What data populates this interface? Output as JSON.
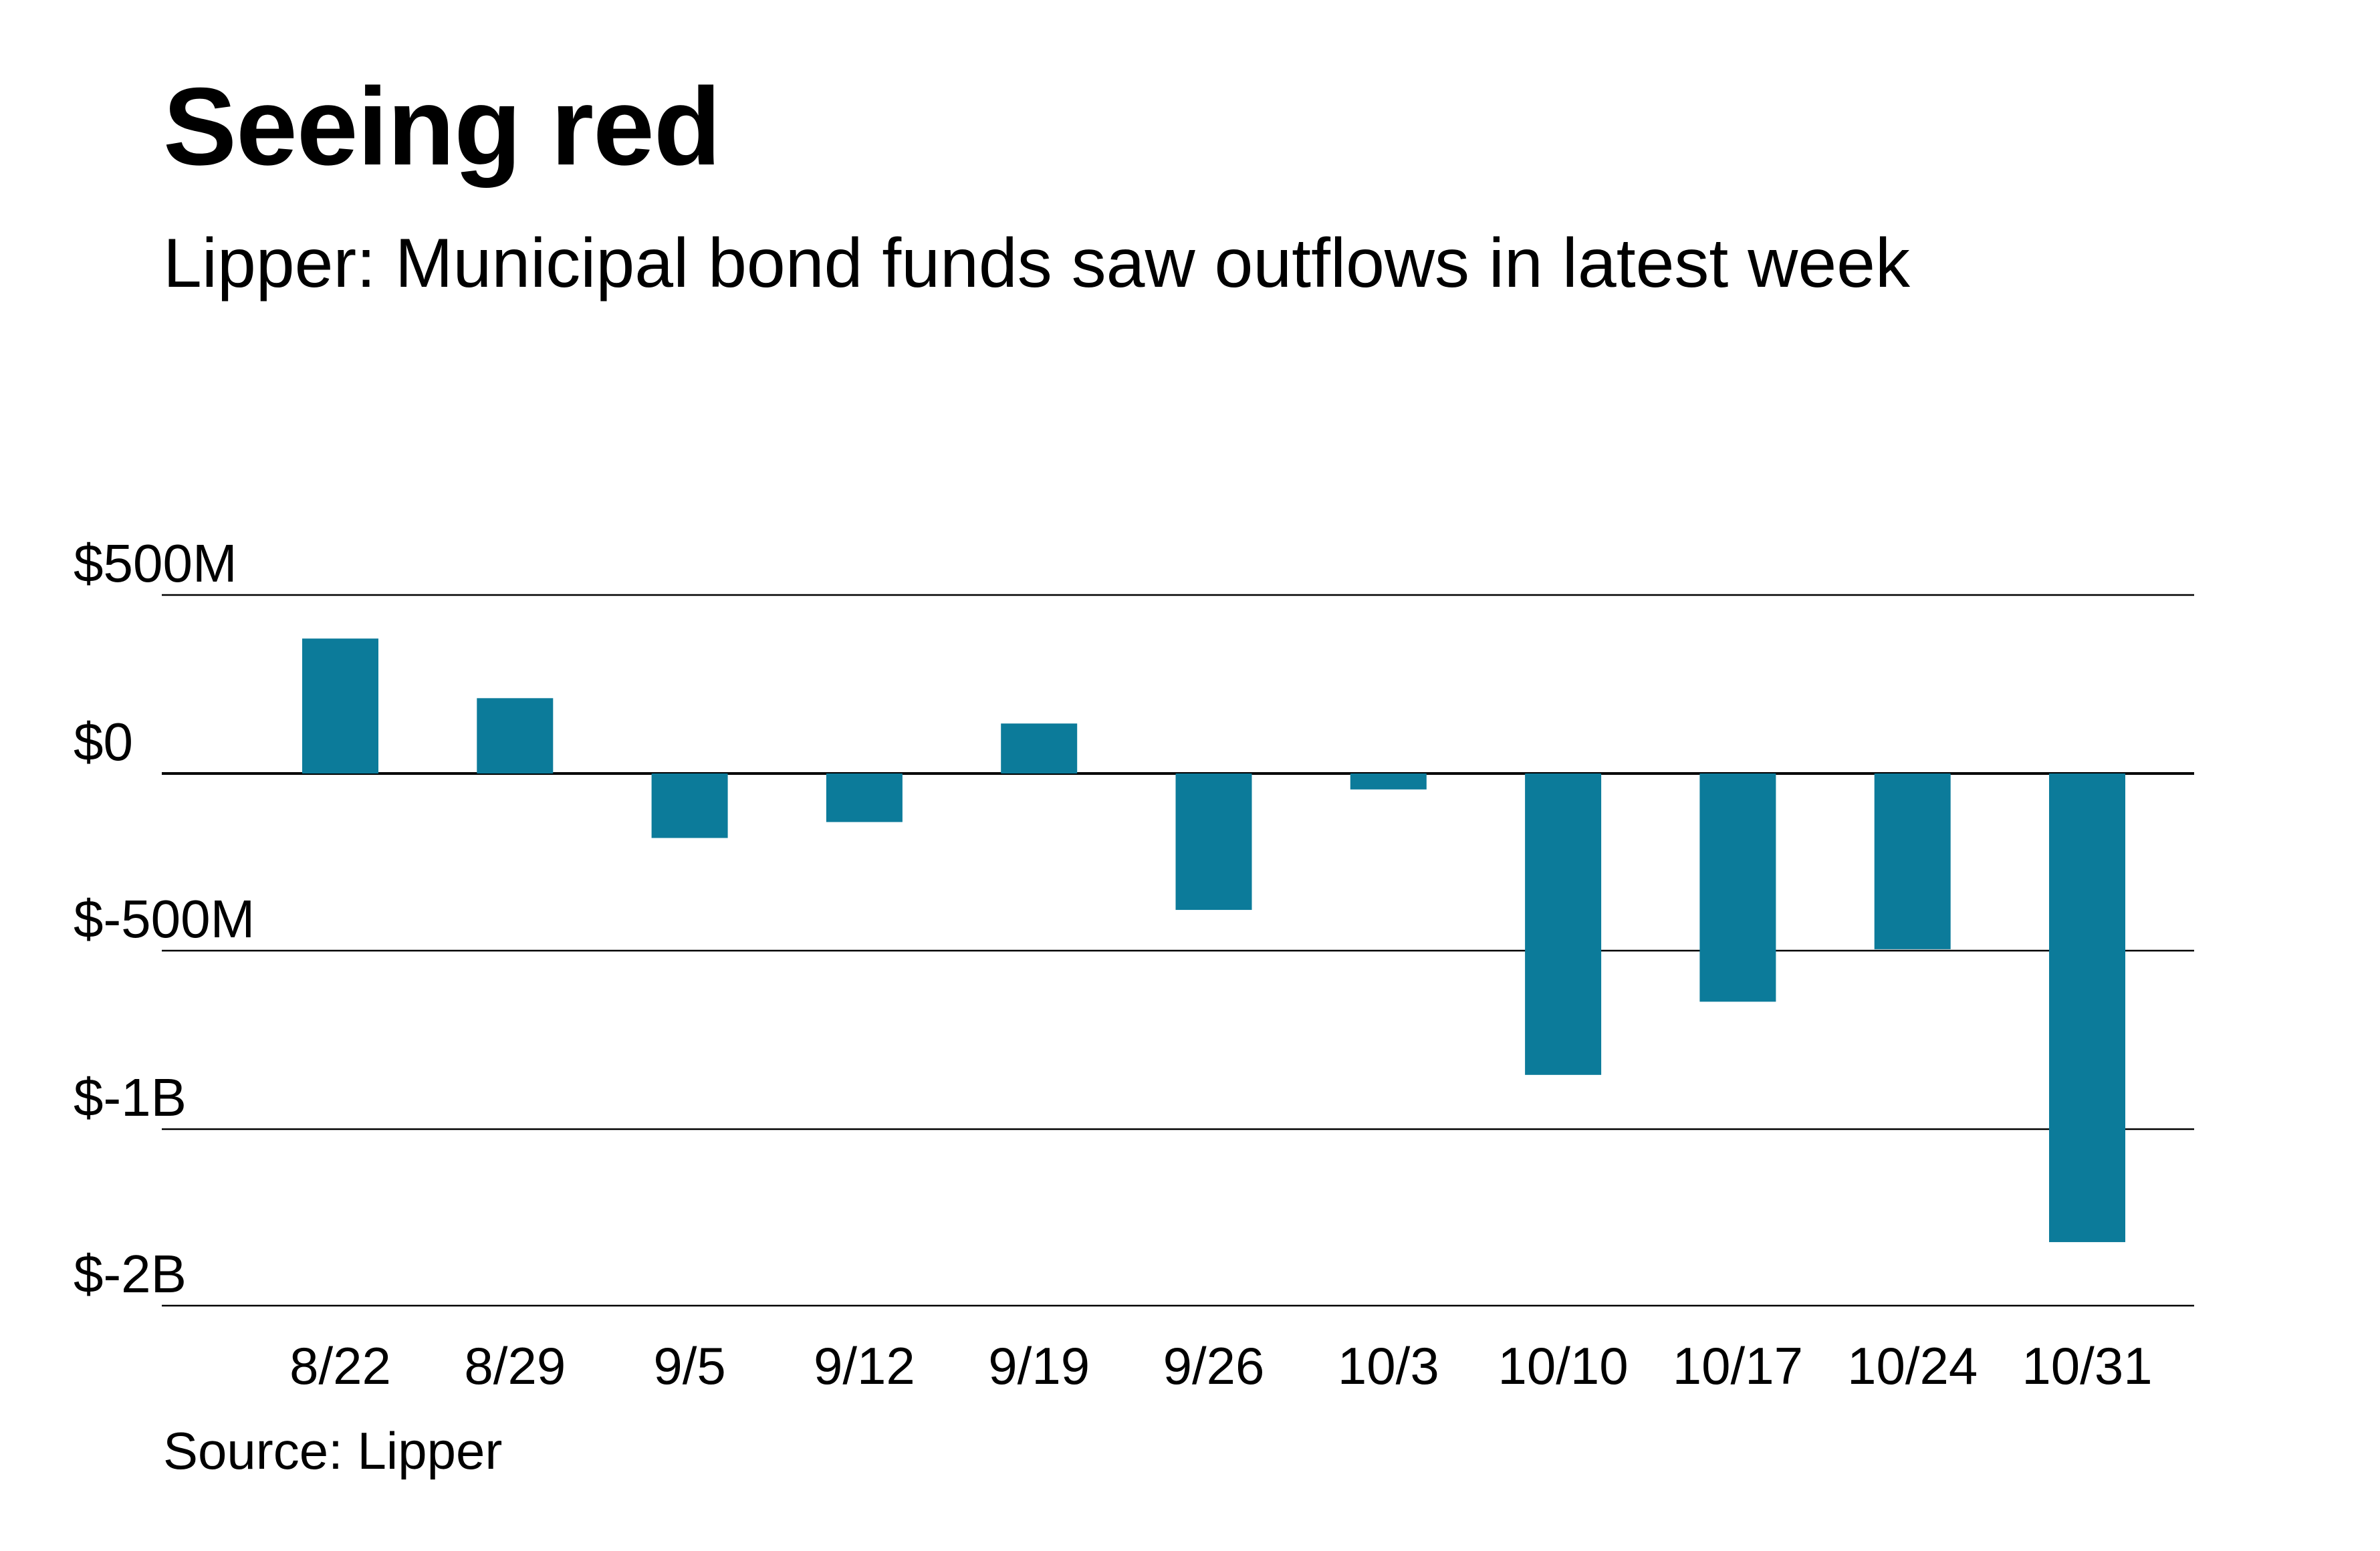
{
  "chart_data": {
    "type": "bar",
    "title": "Seeing red",
    "subtitle": "Lipper: Municipal bond funds saw outflows in latest week",
    "source": "Source: Lipper",
    "categories": [
      "8/22",
      "8/29",
      "9/5",
      "9/12",
      "9/19",
      "9/26",
      "10/3",
      "10/10",
      "10/17",
      "10/24",
      "10/31"
    ],
    "values": [
      378000000,
      211000000,
      -182000000,
      -137000000,
      140000000,
      -385000000,
      -45000000,
      -848000000,
      -643000000,
      -496000000,
      -1640000000
    ],
    "y_ticks": [
      500000000,
      0,
      -500000000,
      -1000000000,
      -2000000000
    ],
    "y_tick_labels": [
      "$500M",
      "$0",
      "$-500M",
      "$-1B",
      "$-2B"
    ],
    "y_scale": "piecewise (ticks evenly spaced)",
    "ylim": [
      -2000000000,
      500000000
    ],
    "grid": true,
    "legend": "none",
    "bar_color": "#0c7b9a"
  }
}
